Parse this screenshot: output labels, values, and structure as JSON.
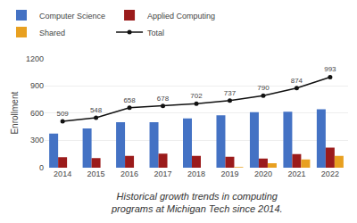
{
  "chart_data": {
    "type": "bar",
    "caption": "Historical growth trends in computing\nprograms at Michigan Tech since 2014.",
    "ylabel": "Enrollment",
    "categories": [
      "2014",
      "2015",
      "2016",
      "2017",
      "2018",
      "2019",
      "2020",
      "2021",
      "2022"
    ],
    "series": [
      {
        "name": "Computer Science",
        "type": "bar",
        "color": "#4472C4",
        "values": [
          375,
          430,
          500,
          500,
          540,
          575,
          610,
          615,
          640
        ]
      },
      {
        "name": "Applied Computing",
        "type": "bar",
        "color": "#9B1B1B",
        "values": [
          115,
          105,
          130,
          155,
          130,
          120,
          100,
          150,
          220
        ]
      },
      {
        "name": "Shared",
        "type": "bar",
        "color": "#E8A020",
        "values": [
          0,
          0,
          0,
          0,
          0,
          5,
          50,
          90,
          130
        ]
      },
      {
        "name": "Total",
        "type": "line",
        "color": "#111111",
        "marker": "circle",
        "data_labels": true,
        "values": [
          509,
          548,
          658,
          678,
          702,
          737,
          790,
          874,
          993
        ]
      }
    ],
    "ylim": [
      0,
      1200
    ],
    "yticks": [
      0,
      300,
      600,
      900,
      1200
    ],
    "grid": true,
    "legend": "upper left"
  }
}
